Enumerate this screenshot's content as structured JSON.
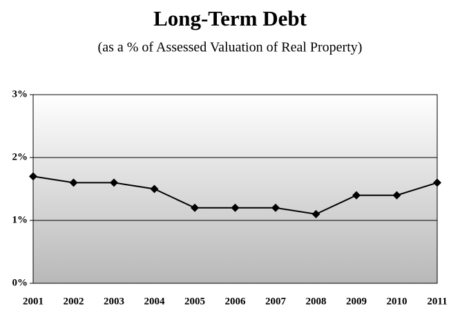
{
  "chart_data": {
    "type": "line",
    "title": "Long-Term Debt",
    "subtitle": "(as a % of Assessed Valuation of Real Property)",
    "categories": [
      "2001",
      "2002",
      "2003",
      "2004",
      "2005",
      "2006",
      "2007",
      "2008",
      "2009",
      "2010",
      "2011"
    ],
    "values": [
      1.7,
      1.6,
      1.6,
      1.5,
      1.2,
      1.2,
      1.2,
      1.1,
      1.4,
      1.4,
      1.6
    ],
    "color": "#000000",
    "ylim": [
      0,
      3
    ],
    "yticks": [
      {
        "value": 0,
        "label": "0%"
      },
      {
        "value": 1,
        "label": "1%"
      },
      {
        "value": 2,
        "label": "2%"
      },
      {
        "value": 3,
        "label": "3%"
      }
    ],
    "grid": true
  }
}
